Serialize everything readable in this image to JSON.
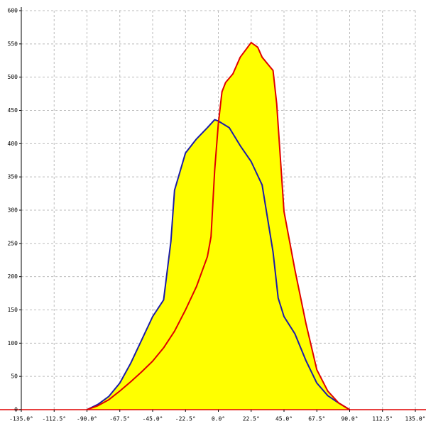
{
  "chart_data": {
    "type": "area",
    "fill_color": "#ffff00",
    "grid": true,
    "xlim": [
      -135,
      135
    ],
    "ylim": [
      0,
      600
    ],
    "xticks": [
      {
        "value": -135,
        "label": "-135.0°"
      },
      {
        "value": -112.5,
        "label": "-112.5°"
      },
      {
        "value": -90,
        "label": "-90.0°"
      },
      {
        "value": -67.5,
        "label": "-67.5°"
      },
      {
        "value": -45,
        "label": "-45.0°"
      },
      {
        "value": -22.5,
        "label": "-22.5°"
      },
      {
        "value": 0,
        "label": "0.0°"
      },
      {
        "value": 22.5,
        "label": "22.5°"
      },
      {
        "value": 45,
        "label": "45.0°"
      },
      {
        "value": 67.5,
        "label": "67.5°"
      },
      {
        "value": 90,
        "label": "90.0°"
      },
      {
        "value": 112.5,
        "label": "112.5°"
      },
      {
        "value": 135,
        "label": "135.0°"
      }
    ],
    "yticks": [
      0,
      50,
      100,
      150,
      200,
      250,
      300,
      350,
      400,
      450,
      500,
      550,
      600
    ],
    "series": [
      {
        "color": "#1c1ca8",
        "x": [
          -90,
          -82.5,
          -75,
          -67.5,
          -60,
          -52.5,
          -45,
          -37.5,
          -32.5,
          -30,
          -22.5,
          -15,
          -7.5,
          -2.5,
          0,
          7.5,
          15,
          22.5,
          30,
          37.5,
          41,
          45,
          52.5,
          60,
          67.5,
          75,
          82.5,
          90
        ],
        "values": [
          0,
          8,
          20,
          40,
          70,
          105,
          140,
          165,
          253,
          330,
          386,
          407,
          424,
          436,
          434,
          424,
          397,
          373,
          338,
          237,
          168,
          140,
          114,
          74,
          40,
          21,
          10,
          0
        ]
      },
      {
        "color": "#e00000",
        "x": [
          -90,
          -82.5,
          -75,
          -67.5,
          -60,
          -52.5,
          -45,
          -37.5,
          -30,
          -22.5,
          -15,
          -7.5,
          -5,
          -2.5,
          0,
          2.5,
          5,
          10,
          15,
          22.5,
          27,
          30,
          37.5,
          40,
          45,
          52.5,
          60,
          67.5,
          75,
          82.5,
          90
        ],
        "values": [
          0,
          6,
          15,
          28,
          42,
          57,
          73,
          93,
          118,
          150,
          185,
          230,
          260,
          360,
          430,
          478,
          492,
          505,
          530,
          552,
          545,
          530,
          510,
          460,
          298,
          210,
          130,
          60,
          28,
          10,
          0
        ]
      }
    ]
  }
}
